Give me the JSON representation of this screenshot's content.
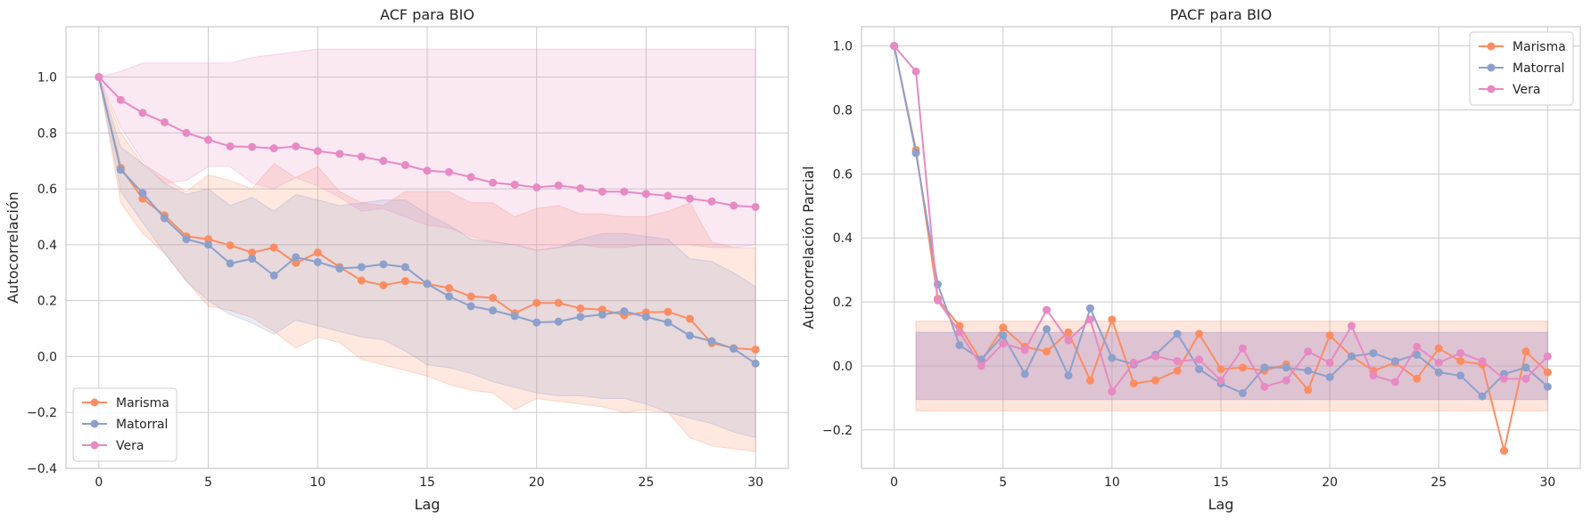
{
  "colors": {
    "Marisma": "#fc8d62",
    "Matorral": "#8da0cb",
    "Vera": "#e78ac3"
  },
  "chart_data": [
    {
      "type": "line",
      "title": "ACF para BIO",
      "xlabel": "Lag",
      "ylabel": "Autocorrelación",
      "xlim": [
        -1.5,
        31.5
      ],
      "ylim": [
        -0.4,
        1.18
      ],
      "xticks": [
        0,
        5,
        10,
        15,
        20,
        25,
        30
      ],
      "yticks": [
        -0.4,
        -0.2,
        0.0,
        0.2,
        0.4,
        0.6,
        0.8,
        1.0
      ],
      "ytick_labels": [
        "−0.4",
        "−0.2",
        "0.0",
        "0.2",
        "0.4",
        "0.6",
        "0.8",
        "1.0"
      ],
      "xtick_labels": [
        "0",
        "5",
        "10",
        "15",
        "20",
        "25",
        "30"
      ],
      "grid": true,
      "legend": "lower-left",
      "x": [
        0,
        1,
        2,
        3,
        4,
        5,
        6,
        7,
        8,
        9,
        10,
        11,
        12,
        13,
        14,
        15,
        16,
        17,
        18,
        19,
        20,
        21,
        22,
        23,
        24,
        25,
        26,
        27,
        28,
        29,
        30
      ],
      "series": [
        {
          "name": "Marisma",
          "values": [
            1.0,
            0.675,
            0.565,
            0.505,
            0.43,
            0.42,
            0.398,
            0.372,
            0.39,
            0.335,
            0.372,
            0.32,
            0.272,
            0.255,
            0.27,
            0.26,
            0.245,
            0.215,
            0.21,
            0.155,
            0.192,
            0.192,
            0.172,
            0.168,
            0.148,
            0.158,
            0.16,
            0.135,
            0.048,
            0.03,
            0.025
          ],
          "band_lower": [
            1.0,
            0.55,
            0.44,
            0.37,
            0.27,
            0.18,
            0.165,
            0.14,
            0.09,
            0.03,
            0.07,
            0.05,
            -0.01,
            -0.03,
            -0.05,
            -0.07,
            -0.1,
            -0.12,
            -0.13,
            -0.19,
            -0.15,
            -0.16,
            -0.17,
            -0.18,
            -0.2,
            -0.19,
            -0.2,
            -0.29,
            -0.32,
            -0.33,
            -0.34
          ],
          "band_upper": [
            1.0,
            0.8,
            0.69,
            0.64,
            0.59,
            0.65,
            0.63,
            0.6,
            0.69,
            0.64,
            0.68,
            0.59,
            0.55,
            0.54,
            0.59,
            0.59,
            0.59,
            0.55,
            0.55,
            0.5,
            0.53,
            0.54,
            0.51,
            0.51,
            0.5,
            0.5,
            0.52,
            0.55,
            0.41,
            0.39,
            0.39
          ]
        },
        {
          "name": "Matorral",
          "values": [
            1.0,
            0.668,
            0.585,
            0.495,
            0.42,
            0.4,
            0.333,
            0.35,
            0.29,
            0.355,
            0.338,
            0.315,
            0.32,
            0.33,
            0.32,
            0.26,
            0.215,
            0.18,
            0.165,
            0.145,
            0.122,
            0.125,
            0.142,
            0.15,
            0.162,
            0.142,
            0.122,
            0.075,
            0.055,
            0.028,
            -0.025
          ],
          "band_lower": [
            1.0,
            0.59,
            0.48,
            0.37,
            0.27,
            0.2,
            0.15,
            0.12,
            0.08,
            0.13,
            0.11,
            0.09,
            0.07,
            0.06,
            0.02,
            -0.03,
            -0.04,
            -0.06,
            -0.09,
            -0.11,
            -0.13,
            -0.14,
            -0.14,
            -0.15,
            -0.15,
            -0.17,
            -0.2,
            -0.22,
            -0.24,
            -0.27,
            -0.29
          ],
          "band_upper": [
            1.0,
            0.75,
            0.69,
            0.62,
            0.58,
            0.6,
            0.54,
            0.57,
            0.52,
            0.58,
            0.56,
            0.54,
            0.55,
            0.56,
            0.56,
            0.51,
            0.47,
            0.42,
            0.41,
            0.4,
            0.38,
            0.39,
            0.42,
            0.44,
            0.44,
            0.43,
            0.42,
            0.35,
            0.34,
            0.3,
            0.25
          ]
        },
        {
          "name": "Vera",
          "values": [
            1.0,
            0.918,
            0.872,
            0.838,
            0.8,
            0.775,
            0.752,
            0.75,
            0.745,
            0.752,
            0.735,
            0.725,
            0.715,
            0.7,
            0.685,
            0.665,
            0.66,
            0.642,
            0.622,
            0.615,
            0.605,
            0.612,
            0.602,
            0.59,
            0.59,
            0.582,
            0.575,
            0.565,
            0.555,
            0.54,
            0.535
          ],
          "band_lower": [
            1.0,
            0.82,
            0.7,
            0.62,
            0.63,
            0.68,
            0.68,
            0.62,
            0.6,
            0.64,
            0.61,
            0.57,
            0.52,
            0.53,
            0.5,
            0.47,
            0.46,
            0.43,
            0.41,
            0.4,
            0.38,
            0.39,
            0.4,
            0.39,
            0.39,
            0.4,
            0.4,
            0.4,
            0.39,
            0.39,
            0.4
          ],
          "band_upper": [
            1.0,
            1.02,
            1.05,
            1.05,
            1.05,
            1.05,
            1.05,
            1.07,
            1.08,
            1.09,
            1.1,
            1.1,
            1.1,
            1.1,
            1.1,
            1.1,
            1.1,
            1.1,
            1.1,
            1.1,
            1.1,
            1.1,
            1.1,
            1.1,
            1.1,
            1.1,
            1.1,
            1.1,
            1.1,
            1.1,
            1.1
          ]
        }
      ]
    },
    {
      "type": "line",
      "title": "PACF para BIO",
      "xlabel": "Lag",
      "ylabel": "Autocorrelación Parcial",
      "xlim": [
        -1.5,
        31.5
      ],
      "ylim": [
        -0.32,
        1.06
      ],
      "xticks": [
        0,
        5,
        10,
        15,
        20,
        25,
        30
      ],
      "yticks": [
        -0.2,
        0.0,
        0.2,
        0.4,
        0.6,
        0.8,
        1.0
      ],
      "ytick_labels": [
        "−0.2",
        "0.0",
        "0.2",
        "0.4",
        "0.6",
        "0.8",
        "1.0"
      ],
      "xtick_labels": [
        "0",
        "5",
        "10",
        "15",
        "20",
        "25",
        "30"
      ],
      "grid": true,
      "legend": "upper-right",
      "confidence_band": {
        "x_range": [
          1,
          30
        ],
        "outer": [
          -0.14,
          0.14
        ],
        "inner": [
          -0.105,
          0.105
        ]
      },
      "x": [
        0,
        1,
        2,
        3,
        4,
        5,
        6,
        7,
        8,
        9,
        10,
        11,
        12,
        13,
        14,
        15,
        16,
        17,
        18,
        19,
        20,
        21,
        22,
        23,
        24,
        25,
        26,
        27,
        28,
        29,
        30
      ],
      "series": [
        {
          "name": "Marisma",
          "values": [
            1.0,
            0.675,
            0.21,
            0.125,
            0.015,
            0.12,
            0.06,
            0.045,
            0.105,
            -0.045,
            0.145,
            -0.055,
            -0.045,
            -0.015,
            0.1,
            -0.01,
            -0.005,
            -0.015,
            0.005,
            -0.075,
            0.095,
            0.03,
            -0.015,
            0.01,
            -0.04,
            0.055,
            0.015,
            0.005,
            -0.265,
            0.045,
            -0.02
          ]
        },
        {
          "name": "Matorral",
          "values": [
            1.0,
            0.665,
            0.255,
            0.065,
            0.02,
            0.095,
            -0.025,
            0.115,
            -0.03,
            0.18,
            0.025,
            0.005,
            0.035,
            0.1,
            -0.01,
            -0.055,
            -0.085,
            -0.005,
            -0.005,
            -0.015,
            -0.035,
            0.03,
            0.04,
            0.015,
            0.035,
            -0.02,
            -0.03,
            -0.095,
            -0.025,
            -0.005,
            -0.065
          ]
        },
        {
          "name": "Vera",
          "values": [
            1.0,
            0.92,
            0.205,
            0.105,
            0.0,
            0.07,
            0.05,
            0.175,
            0.08,
            0.145,
            -0.08,
            0.01,
            0.03,
            0.015,
            0.02,
            -0.045,
            0.055,
            -0.065,
            -0.045,
            0.045,
            0.01,
            0.125,
            -0.03,
            -0.05,
            0.06,
            0.01,
            0.04,
            0.015,
            -0.04,
            -0.04,
            0.03
          ]
        }
      ]
    }
  ]
}
